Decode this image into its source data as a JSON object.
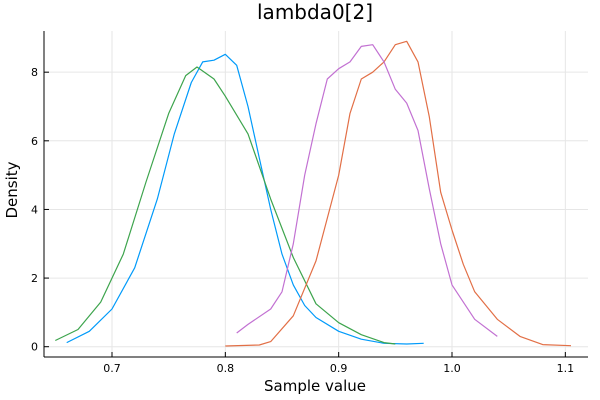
{
  "chart_data": {
    "type": "line",
    "title": "lambda0[2]",
    "xlabel": "Sample value",
    "ylabel": "Density",
    "xlim": [
      0.64,
      1.12
    ],
    "ylim": [
      -0.3,
      9.2
    ],
    "xticks": [
      0.7,
      0.8,
      0.9,
      1.0,
      1.1
    ],
    "xtick_labels": [
      "0.7",
      "0.8",
      "0.9",
      "1.0",
      "1.1"
    ],
    "yticks": [
      0,
      2,
      4,
      6,
      8
    ],
    "ytick_labels": [
      "0",
      "2",
      "4",
      "6",
      "8"
    ],
    "grid": true,
    "legend": "none",
    "series": [
      {
        "color": "#009AFA",
        "points": [
          [
            0.66,
            0.12
          ],
          [
            0.68,
            0.45
          ],
          [
            0.7,
            1.1
          ],
          [
            0.72,
            2.3
          ],
          [
            0.74,
            4.3
          ],
          [
            0.755,
            6.2
          ],
          [
            0.77,
            7.7
          ],
          [
            0.78,
            8.3
          ],
          [
            0.79,
            8.35
          ],
          [
            0.8,
            8.52
          ],
          [
            0.81,
            8.2
          ],
          [
            0.82,
            7.0
          ],
          [
            0.83,
            5.5
          ],
          [
            0.84,
            4.0
          ],
          [
            0.85,
            2.7
          ],
          [
            0.86,
            1.8
          ],
          [
            0.87,
            1.2
          ],
          [
            0.88,
            0.85
          ],
          [
            0.9,
            0.45
          ],
          [
            0.92,
            0.22
          ],
          [
            0.94,
            0.1
          ],
          [
            0.96,
            0.08
          ],
          [
            0.975,
            0.1
          ]
        ]
      },
      {
        "color": "#3DA44D",
        "points": [
          [
            0.65,
            0.18
          ],
          [
            0.67,
            0.5
          ],
          [
            0.69,
            1.3
          ],
          [
            0.71,
            2.7
          ],
          [
            0.73,
            4.8
          ],
          [
            0.75,
            6.8
          ],
          [
            0.765,
            7.9
          ],
          [
            0.775,
            8.15
          ],
          [
            0.79,
            7.8
          ],
          [
            0.8,
            7.3
          ],
          [
            0.82,
            6.2
          ],
          [
            0.84,
            4.3
          ],
          [
            0.86,
            2.6
          ],
          [
            0.88,
            1.25
          ],
          [
            0.9,
            0.7
          ],
          [
            0.92,
            0.35
          ],
          [
            0.94,
            0.12
          ],
          [
            0.95,
            0.08
          ]
        ]
      },
      {
        "color": "#E26F46",
        "points": [
          [
            0.8,
            0.02
          ],
          [
            0.83,
            0.05
          ],
          [
            0.84,
            0.15
          ],
          [
            0.86,
            0.9
          ],
          [
            0.88,
            2.5
          ],
          [
            0.9,
            5.0
          ],
          [
            0.91,
            6.8
          ],
          [
            0.92,
            7.8
          ],
          [
            0.93,
            8.0
          ],
          [
            0.94,
            8.3
          ],
          [
            0.95,
            8.8
          ],
          [
            0.96,
            8.9
          ],
          [
            0.97,
            8.3
          ],
          [
            0.98,
            6.7
          ],
          [
            0.99,
            4.5
          ],
          [
            1.0,
            3.4
          ],
          [
            1.01,
            2.4
          ],
          [
            1.02,
            1.6
          ],
          [
            1.04,
            0.8
          ],
          [
            1.06,
            0.3
          ],
          [
            1.08,
            0.06
          ],
          [
            1.105,
            0.03
          ]
        ]
      },
      {
        "color": "#C271D2",
        "points": [
          [
            0.81,
            0.4
          ],
          [
            0.82,
            0.65
          ],
          [
            0.84,
            1.1
          ],
          [
            0.85,
            1.6
          ],
          [
            0.86,
            3.0
          ],
          [
            0.87,
            5.0
          ],
          [
            0.88,
            6.5
          ],
          [
            0.89,
            7.8
          ],
          [
            0.9,
            8.1
          ],
          [
            0.91,
            8.3
          ],
          [
            0.92,
            8.75
          ],
          [
            0.93,
            8.8
          ],
          [
            0.94,
            8.3
          ],
          [
            0.95,
            7.5
          ],
          [
            0.96,
            7.1
          ],
          [
            0.97,
            6.3
          ],
          [
            0.98,
            4.6
          ],
          [
            0.99,
            3.0
          ],
          [
            1.0,
            1.8
          ],
          [
            1.02,
            0.8
          ],
          [
            1.04,
            0.3
          ]
        ]
      }
    ]
  }
}
